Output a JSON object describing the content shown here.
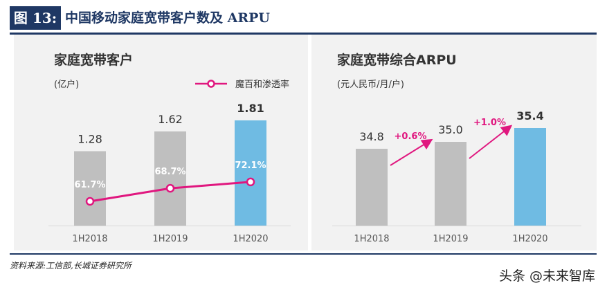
{
  "header": {
    "figure_tag": "图 13:",
    "figure_title": "中国移动家庭宽带客户数及 ARPU"
  },
  "chart_data": [
    {
      "type": "bar",
      "title": "家庭宽带客户",
      "ylabel": "(亿户)",
      "categories": [
        "1H2018",
        "1H2019",
        "1H2020"
      ],
      "series": [
        {
          "values": [
            1.28,
            1.62,
            1.81
          ],
          "colors": [
            "#bfbfbf",
            "#bfbfbf",
            "#6fbbe3"
          ]
        },
        {
          "name": "魔百和渗透率",
          "type": "line",
          "values": [
            61.7,
            68.7,
            72.1
          ],
          "labels": [
            "61.7%",
            "68.7%",
            "72.1%"
          ],
          "color": "#e0177f"
        }
      ],
      "value_labels": [
        "1.28",
        "1.62",
        "1.81"
      ],
      "legend_position": "top-right",
      "ylim": [
        0,
        2.2
      ],
      "grid": false
    },
    {
      "type": "bar",
      "title": "家庭宽带综合ARPU",
      "ylabel": "(元人民币/月/户)",
      "categories": [
        "1H2018",
        "1H2019",
        "1H2020"
      ],
      "series": [
        {
          "values": [
            34.8,
            35.0,
            35.4
          ],
          "colors": [
            "#bfbfbf",
            "#bfbfbf",
            "#6fbbe3"
          ]
        }
      ],
      "value_labels": [
        "34.8",
        "35.0",
        "35.4"
      ],
      "annotations": [
        "+0.6%",
        "+1.0%"
      ],
      "annotation_color": "#e0177f",
      "grid": false
    }
  ],
  "footer": {
    "source": "资料来源:工信部,长城证券研究所",
    "watermark": "头条 @未来智库"
  }
}
